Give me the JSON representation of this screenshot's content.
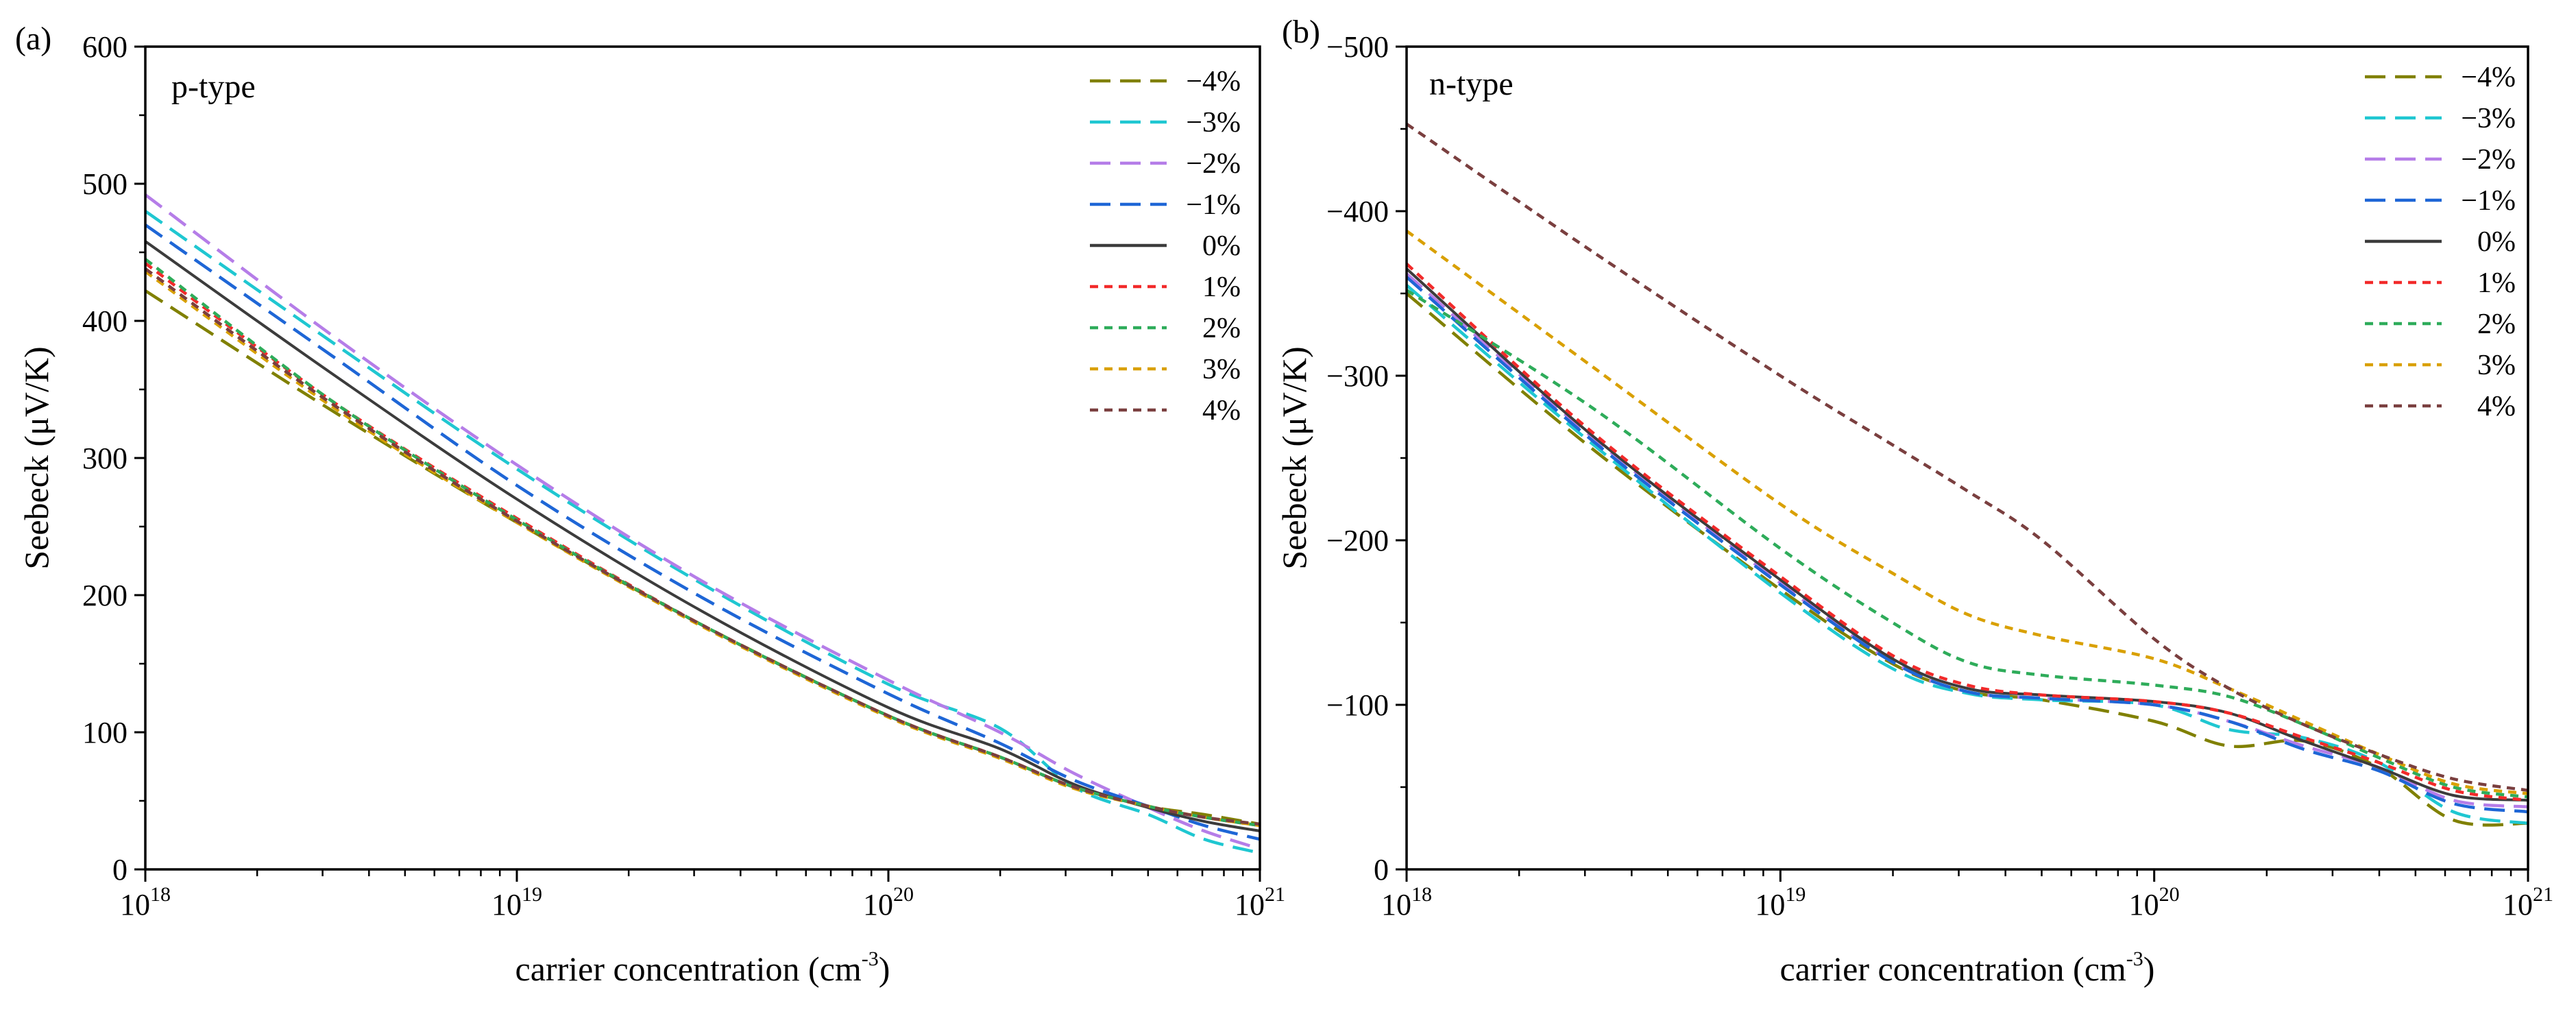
{
  "colors": {
    "-4%": "#808000",
    "-3%": "#1fc7d1",
    "-2%": "#b57de8",
    "-1%": "#1e66d6",
    "0%": "#3c3c3c",
    "1%": "#f22a2a",
    "2%": "#2eac5a",
    "3%": "#d9a000",
    "4%": "#7a3f3f"
  },
  "chart_data": [
    {
      "type": "line",
      "panel_label": "(a)",
      "inner_label": "p-type",
      "xlabel": "carrier concentration (cm",
      "xlabel_sup": "-3",
      "xlabel_end": ")",
      "ylabel": "Seebeck (μV/K)",
      "xscale": "log",
      "xlim_exp": [
        18,
        21
      ],
      "x_ticks": [
        {
          "base": "10",
          "exp": "18",
          "value_exp": 18
        },
        {
          "base": "10",
          "exp": "19",
          "value_exp": 19
        },
        {
          "base": "10",
          "exp": "20",
          "value_exp": 20
        },
        {
          "base": "10",
          "exp": "21",
          "value_exp": 21
        }
      ],
      "ylim": [
        0,
        600
      ],
      "y_ticks": [
        {
          "label": "0",
          "value": 0
        },
        {
          "label": "100",
          "value": 100
        },
        {
          "label": "200",
          "value": 200
        },
        {
          "label": "300",
          "value": 300
        },
        {
          "label": "400",
          "value": 400
        },
        {
          "label": "500",
          "value": 500
        },
        {
          "label": "600",
          "value": 600
        }
      ],
      "legend_position": "top-right",
      "x_exp": [
        18,
        18.5,
        19,
        19.5,
        20,
        20.3,
        20.5,
        20.7,
        20.85,
        21
      ],
      "series": [
        {
          "name": "−4%",
          "key": "-4%",
          "dash": "long",
          "values": [
            422,
            335,
            253,
            178,
            112,
            82,
            60,
            46,
            40,
            33
          ]
        },
        {
          "name": "−3%",
          "key": "-3%",
          "dash": "long",
          "values": [
            480,
            385,
            292,
            208,
            135,
            103,
            60,
            40,
            22,
            12
          ]
        },
        {
          "name": "−2%",
          "key": "-2%",
          "dash": "long",
          "values": [
            492,
            390,
            295,
            210,
            138,
            100,
            70,
            45,
            28,
            15
          ]
        },
        {
          "name": "−1%",
          "key": "-1%",
          "dash": "long",
          "values": [
            470,
            375,
            280,
            198,
            128,
            92,
            65,
            46,
            32,
            22
          ]
        },
        {
          "name": "0%",
          "key": "0%",
          "dash": "solid",
          "values": [
            458,
            362,
            270,
            188,
            118,
            88,
            62,
            45,
            35,
            28
          ]
        },
        {
          "name": "1%",
          "key": "1%",
          "dash": "short",
          "values": [
            442,
            342,
            256,
            178,
            112,
            82,
            60,
            46,
            38,
            32
          ]
        },
        {
          "name": "2%",
          "key": "2%",
          "dash": "short",
          "values": [
            445,
            342,
            255,
            178,
            112,
            82,
            60,
            46,
            38,
            32
          ]
        },
        {
          "name": "3%",
          "key": "3%",
          "dash": "short",
          "values": [
            436,
            338,
            253,
            177,
            111,
            81,
            59,
            46,
            38,
            32
          ]
        },
        {
          "name": "4%",
          "key": "4%",
          "dash": "short",
          "values": [
            438,
            340,
            254,
            178,
            112,
            82,
            60,
            46,
            38,
            33
          ]
        }
      ]
    },
    {
      "type": "line",
      "panel_label": "(b)",
      "inner_label": "n-type",
      "xlabel": "carrier concentration (cm",
      "xlabel_sup": "-3",
      "xlabel_end": ")",
      "ylabel": "Seebeck (μV/K)",
      "xscale": "log",
      "xlim_exp": [
        18,
        21
      ],
      "x_ticks": [
        {
          "base": "10",
          "exp": "18",
          "value_exp": 18
        },
        {
          "base": "10",
          "exp": "19",
          "value_exp": 19
        },
        {
          "base": "10",
          "exp": "20",
          "value_exp": 20
        },
        {
          "base": "10",
          "exp": "21",
          "value_exp": 21
        }
      ],
      "ylim": [
        0,
        -500
      ],
      "y_ticks": [
        {
          "label": "0",
          "value": 0
        },
        {
          "label": "−100",
          "value": -100
        },
        {
          "label": "−200",
          "value": -200
        },
        {
          "label": "−300",
          "value": -300
        },
        {
          "label": "−400",
          "value": -400
        },
        {
          "label": "−500",
          "value": -500
        }
      ],
      "legend_position": "top-right",
      "x_exp": [
        18,
        18.5,
        19,
        19.3,
        19.5,
        19.7,
        20,
        20.2,
        20.4,
        20.6,
        20.8,
        21
      ],
      "series": [
        {
          "name": "−4%",
          "key": "-4%",
          "dash": "long",
          "values": [
            -350,
            -255,
            -170,
            -125,
            -108,
            -103,
            -90,
            -75,
            -78,
            -62,
            -30,
            -28
          ]
        },
        {
          "name": "−3%",
          "key": "-3%",
          "dash": "long",
          "values": [
            -355,
            -258,
            -168,
            -122,
            -107,
            -103,
            -100,
            -85,
            -80,
            -65,
            -35,
            -28
          ]
        },
        {
          "name": "−2%",
          "key": "-2%",
          "dash": "long",
          "values": [
            -362,
            -262,
            -174,
            -126,
            -108,
            -104,
            -100,
            -90,
            -75,
            -62,
            -42,
            -38
          ]
        },
        {
          "name": "−1%",
          "key": "-1%",
          "dash": "long",
          "values": [
            -360,
            -260,
            -173,
            -126,
            -108,
            -104,
            -100,
            -90,
            -73,
            -60,
            -40,
            -35
          ]
        },
        {
          "name": "0%",
          "key": "0%",
          "dash": "solid",
          "values": [
            -365,
            -263,
            -176,
            -128,
            -110,
            -106,
            -102,
            -95,
            -78,
            -62,
            -45,
            -42
          ]
        },
        {
          "name": "1%",
          "key": "1%",
          "dash": "short",
          "values": [
            -368,
            -265,
            -178,
            -130,
            -112,
            -106,
            -102,
            -95,
            -80,
            -65,
            -48,
            -42
          ]
        },
        {
          "name": "2%",
          "key": "2%",
          "dash": "short",
          "values": [
            -352,
            -280,
            -195,
            -150,
            -126,
            -118,
            -112,
            -105,
            -88,
            -68,
            -50,
            -44
          ]
        },
        {
          "name": "3%",
          "key": "3%",
          "dash": "short",
          "values": [
            -388,
            -305,
            -222,
            -180,
            -155,
            -142,
            -128,
            -110,
            -90,
            -70,
            -52,
            -46
          ]
        },
        {
          "name": "4%",
          "key": "4%",
          "dash": "short",
          "values": [
            -453,
            -375,
            -300,
            -258,
            -230,
            -200,
            -140,
            -110,
            -88,
            -70,
            -55,
            -48
          ]
        }
      ]
    }
  ]
}
